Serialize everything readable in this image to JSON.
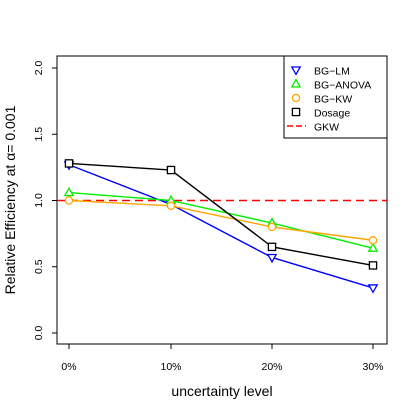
{
  "chart_data": {
    "type": "line",
    "xlabel": "uncertainty level",
    "ylabel": "Relative Efficiency at  α= 0.001",
    "categories": [
      "0%",
      "10%",
      "20%",
      "30%"
    ],
    "ylim": [
      0.0,
      2.0
    ],
    "yticks": [
      "0.0",
      "0.5",
      "1.0",
      "1.5",
      "2.0"
    ],
    "legend_position": "top-right",
    "series": [
      {
        "name": "BG−LM",
        "color": "#0000ff",
        "marker": "triangle-down",
        "values": [
          1.27,
          0.97,
          0.57,
          0.34
        ]
      },
      {
        "name": "BG−ANOVA",
        "color": "#00ee00",
        "marker": "triangle-up",
        "values": [
          1.06,
          1.0,
          0.83,
          0.64
        ]
      },
      {
        "name": "BG−KW",
        "color": "#ffa500",
        "marker": "circle",
        "values": [
          1.0,
          0.96,
          0.8,
          0.7
        ]
      },
      {
        "name": "Dosage",
        "color": "#000000",
        "marker": "square",
        "values": [
          1.28,
          1.23,
          0.65,
          0.51
        ]
      }
    ],
    "reference_line": {
      "name": "GKW",
      "color": "#ff0000",
      "value": 1.0,
      "style": "dashed"
    }
  }
}
